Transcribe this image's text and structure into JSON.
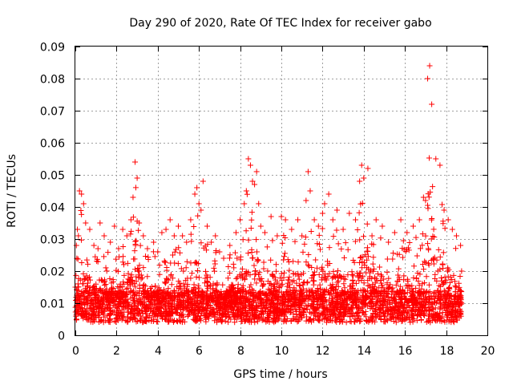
{
  "chart_data": {
    "type": "scatter",
    "title": "Day 290 of 2020, Rate Of TEC Index for receiver gabo",
    "xlabel": "GPS time / hours",
    "ylabel": "ROTI / TECUs",
    "xlim": [
      0,
      20
    ],
    "ylim": [
      0,
      0.09
    ],
    "x_ticks": [
      "0",
      "2",
      "4",
      "6",
      "8",
      "10",
      "12",
      "14",
      "16",
      "18",
      "20"
    ],
    "y_ticks": [
      "0",
      "0.01",
      "0.02",
      "0.03",
      "0.04",
      "0.05",
      "0.06",
      "0.07",
      "0.08",
      "0.09"
    ],
    "grid": true,
    "marker": "+",
    "color": "#ff0000",
    "series": [
      {
        "name": "ROTI",
        "x": [
          0.0,
          0.05,
          0.1,
          0.15,
          0.2,
          0.3,
          0.4,
          0.5,
          0.7,
          0.9,
          1.1,
          1.2,
          1.4,
          1.7,
          1.9,
          2.1,
          2.3,
          2.5,
          2.7,
          2.8,
          2.9,
          3.0,
          3.1,
          3.3,
          3.5,
          3.8,
          4.0,
          4.2,
          4.4,
          4.6,
          4.8,
          5.0,
          5.2,
          5.4,
          5.6,
          5.8,
          5.9,
          6.0,
          6.1,
          6.2,
          6.4,
          6.6,
          6.8,
          7.0,
          7.2,
          7.5,
          7.8,
          8.0,
          8.2,
          8.3,
          8.4,
          8.5,
          8.6,
          8.7,
          8.8,
          8.9,
          9.0,
          9.2,
          9.5,
          9.8,
          10.0,
          10.2,
          10.5,
          10.8,
          11.0,
          11.2,
          11.3,
          11.4,
          11.6,
          11.8,
          12.0,
          12.1,
          12.3,
          12.5,
          12.7,
          13.0,
          13.3,
          13.6,
          13.8,
          13.9,
          14.0,
          14.2,
          14.4,
          14.6,
          14.9,
          15.2,
          15.5,
          15.8,
          16.1,
          16.4,
          16.7,
          16.9,
          17.0,
          17.1,
          17.2,
          17.3,
          17.5,
          17.7,
          17.9,
          18.1,
          18.3,
          18.5,
          18.7,
          18.75
        ],
        "y": [
          0.015,
          0.028,
          0.033,
          0.031,
          0.045,
          0.044,
          0.041,
          0.035,
          0.033,
          0.028,
          0.027,
          0.035,
          0.031,
          0.029,
          0.034,
          0.027,
          0.033,
          0.031,
          0.036,
          0.043,
          0.054,
          0.049,
          0.035,
          0.031,
          0.027,
          0.029,
          0.026,
          0.032,
          0.033,
          0.036,
          0.031,
          0.034,
          0.031,
          0.029,
          0.036,
          0.044,
          0.046,
          0.041,
          0.039,
          0.048,
          0.034,
          0.029,
          0.031,
          0.026,
          0.024,
          0.028,
          0.032,
          0.036,
          0.041,
          0.045,
          0.055,
          0.053,
          0.048,
          0.047,
          0.051,
          0.041,
          0.034,
          0.032,
          0.037,
          0.031,
          0.037,
          0.036,
          0.033,
          0.036,
          0.031,
          0.042,
          0.051,
          0.045,
          0.036,
          0.034,
          0.038,
          0.041,
          0.044,
          0.036,
          0.039,
          0.033,
          0.038,
          0.036,
          0.048,
          0.053,
          0.049,
          0.052,
          0.031,
          0.036,
          0.034,
          0.029,
          0.032,
          0.036,
          0.032,
          0.034,
          0.036,
          0.043,
          0.042,
          0.08,
          0.084,
          0.072,
          0.055,
          0.053,
          0.039,
          0.036,
          0.033,
          0.031,
          0.028,
          0.02
        ]
      }
    ]
  }
}
